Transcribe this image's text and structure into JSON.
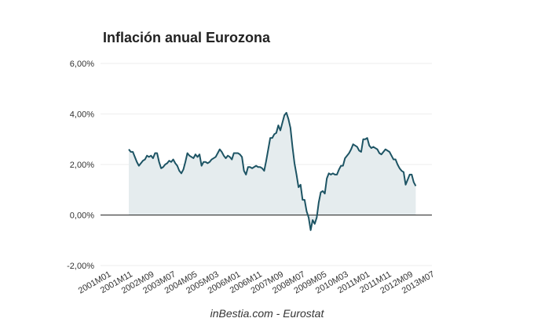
{
  "chart_data": {
    "type": "area",
    "title": "Inflación anual Eurozona",
    "source": "inBestia.com - Eurostat",
    "ylim": [
      -2,
      6
    ],
    "y_ticks": [
      {
        "value": 6,
        "label": "6,00%"
      },
      {
        "value": 4,
        "label": "4,00%"
      },
      {
        "value": 2,
        "label": "2,00%"
      },
      {
        "value": 0,
        "label": "0,00%"
      },
      {
        "value": -2,
        "label": "-2,00%"
      }
    ],
    "x_tick_labels": [
      "2001M01",
      "2001M11",
      "2002M09",
      "2003M07",
      "2004M05",
      "2005M03",
      "2006M01",
      "2006M11",
      "2007M09",
      "2008M07",
      "2009M05",
      "2010M03",
      "2011M01",
      "2011M11",
      "2012M09",
      "2013M07"
    ],
    "x_start": "2001M01",
    "x_end": "2013M07",
    "grid": true,
    "legend": "none",
    "colors": {
      "line": "#1d5464",
      "fill": "#e5ecee",
      "grid": "#eeeeee",
      "zero_line": "#222222"
    },
    "series": [
      {
        "values": [
          2.6,
          2.5,
          2.5,
          2.3,
          2.1,
          1.95,
          2.05,
          2.15,
          2.2,
          2.35,
          2.3,
          2.35,
          2.25,
          2.45,
          2.45,
          2.1,
          1.85,
          1.9,
          2.0,
          2.05,
          2.15,
          2.1,
          2.2,
          2.05,
          1.95,
          1.75,
          1.65,
          1.8,
          2.1,
          2.45,
          2.35,
          2.3,
          2.25,
          2.4,
          2.3,
          2.4,
          1.95,
          2.1,
          2.1,
          2.05,
          2.1,
          2.2,
          2.25,
          2.3,
          2.45,
          2.6,
          2.5,
          2.35,
          2.25,
          2.35,
          2.3,
          2.2,
          2.45,
          2.45,
          2.45,
          2.4,
          2.3,
          1.75,
          1.6,
          1.9,
          1.9,
          1.85,
          1.9,
          1.95,
          1.9,
          1.9,
          1.85,
          1.75,
          2.15,
          2.6,
          3.05,
          3.05,
          3.2,
          3.25,
          3.55,
          3.35,
          3.65,
          3.95,
          4.05,
          3.8,
          3.45,
          2.7,
          2.05,
          1.6,
          1.1,
          1.2,
          0.6,
          0.6,
          0.15,
          -0.1,
          -0.6,
          -0.2,
          -0.35,
          -0.1,
          0.5,
          0.9,
          0.95,
          0.85,
          1.45,
          1.65,
          1.6,
          1.65,
          1.6,
          1.6,
          1.8,
          1.95,
          1.95,
          2.25,
          2.35,
          2.45,
          2.6,
          2.8,
          2.75,
          2.7,
          2.55,
          2.5,
          3.0,
          3.0,
          3.05,
          2.75,
          2.65,
          2.7,
          2.65,
          2.6,
          2.45,
          2.4,
          2.5,
          2.6,
          2.55,
          2.5,
          2.35,
          2.2,
          2.2,
          2.0,
          1.85,
          1.75,
          1.7,
          1.2,
          1.4,
          1.6,
          1.6,
          1.3,
          1.15
        ]
      }
    ]
  }
}
